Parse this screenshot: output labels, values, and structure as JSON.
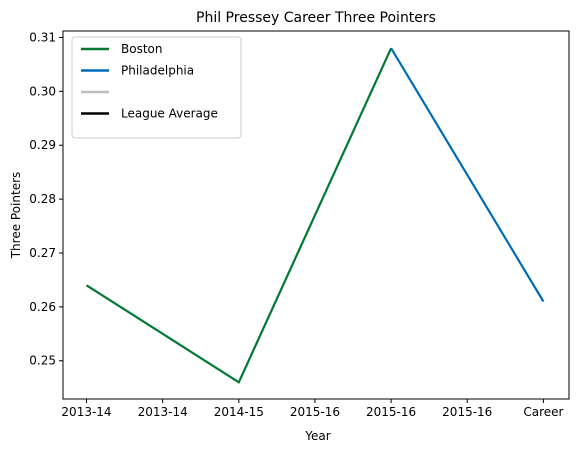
{
  "chart_data": {
    "type": "line",
    "title": "Phil Pressey Career Three Pointers",
    "xlabel": "Year",
    "ylabel": "Three Pointers",
    "categories": [
      "2013-14",
      "2013-14",
      "2014-15",
      "2015-16",
      "2015-16",
      "2015-16",
      "Career"
    ],
    "ylim": [
      0.2429,
      0.3112
    ],
    "yticks": [
      0.25,
      0.26,
      0.27,
      0.28,
      0.29,
      0.3,
      0.31
    ],
    "ytick_labels": [
      "0.25",
      "0.26",
      "0.27",
      "0.28",
      "0.29",
      "0.30",
      "0.31"
    ],
    "grid": false,
    "legend_position": "top-left",
    "series": [
      {
        "name": "Boston",
        "color": "#007a33",
        "points": [
          {
            "x_index": 0,
            "y": 0.264
          },
          {
            "x_index": 2,
            "y": 0.246
          },
          {
            "x_index": 4,
            "y": 0.308
          }
        ]
      },
      {
        "name": "Philadelphia",
        "color": "#006bb6",
        "points": [
          {
            "x_index": 4,
            "y": 0.308
          },
          {
            "x_index": 6,
            "y": 0.261
          }
        ]
      },
      {
        "name": "",
        "color": "#bebebe",
        "points": []
      },
      {
        "name": "League Average",
        "color": "#000000",
        "points": []
      }
    ]
  }
}
